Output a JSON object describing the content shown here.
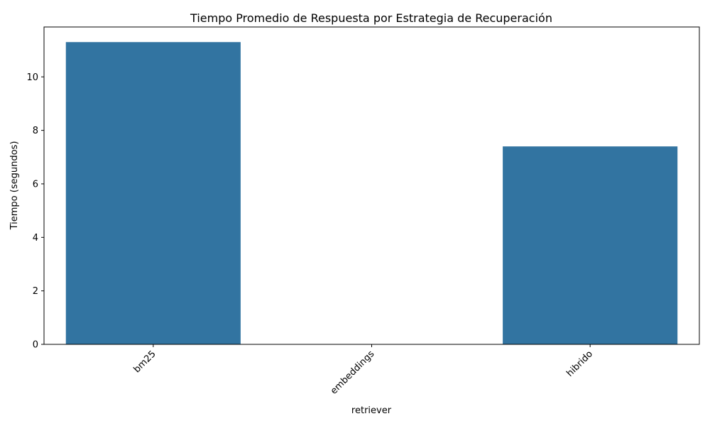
{
  "chart_data": {
    "type": "bar",
    "title": "Tiempo Promedio de Respuesta por Estrategia de Recuperación",
    "xlabel": "retriever",
    "ylabel": "Tiempo (segundos)",
    "categories": [
      "bm25",
      "embeddings",
      "hibrido"
    ],
    "values": [
      11.3,
      0,
      7.4
    ],
    "ylim": [
      0,
      11.865
    ],
    "yticks": [
      0,
      2,
      4,
      6,
      8,
      10
    ],
    "x_tick_rotation_deg": 45,
    "grid": false,
    "legend": "none",
    "bar_color": "#3274a1"
  }
}
